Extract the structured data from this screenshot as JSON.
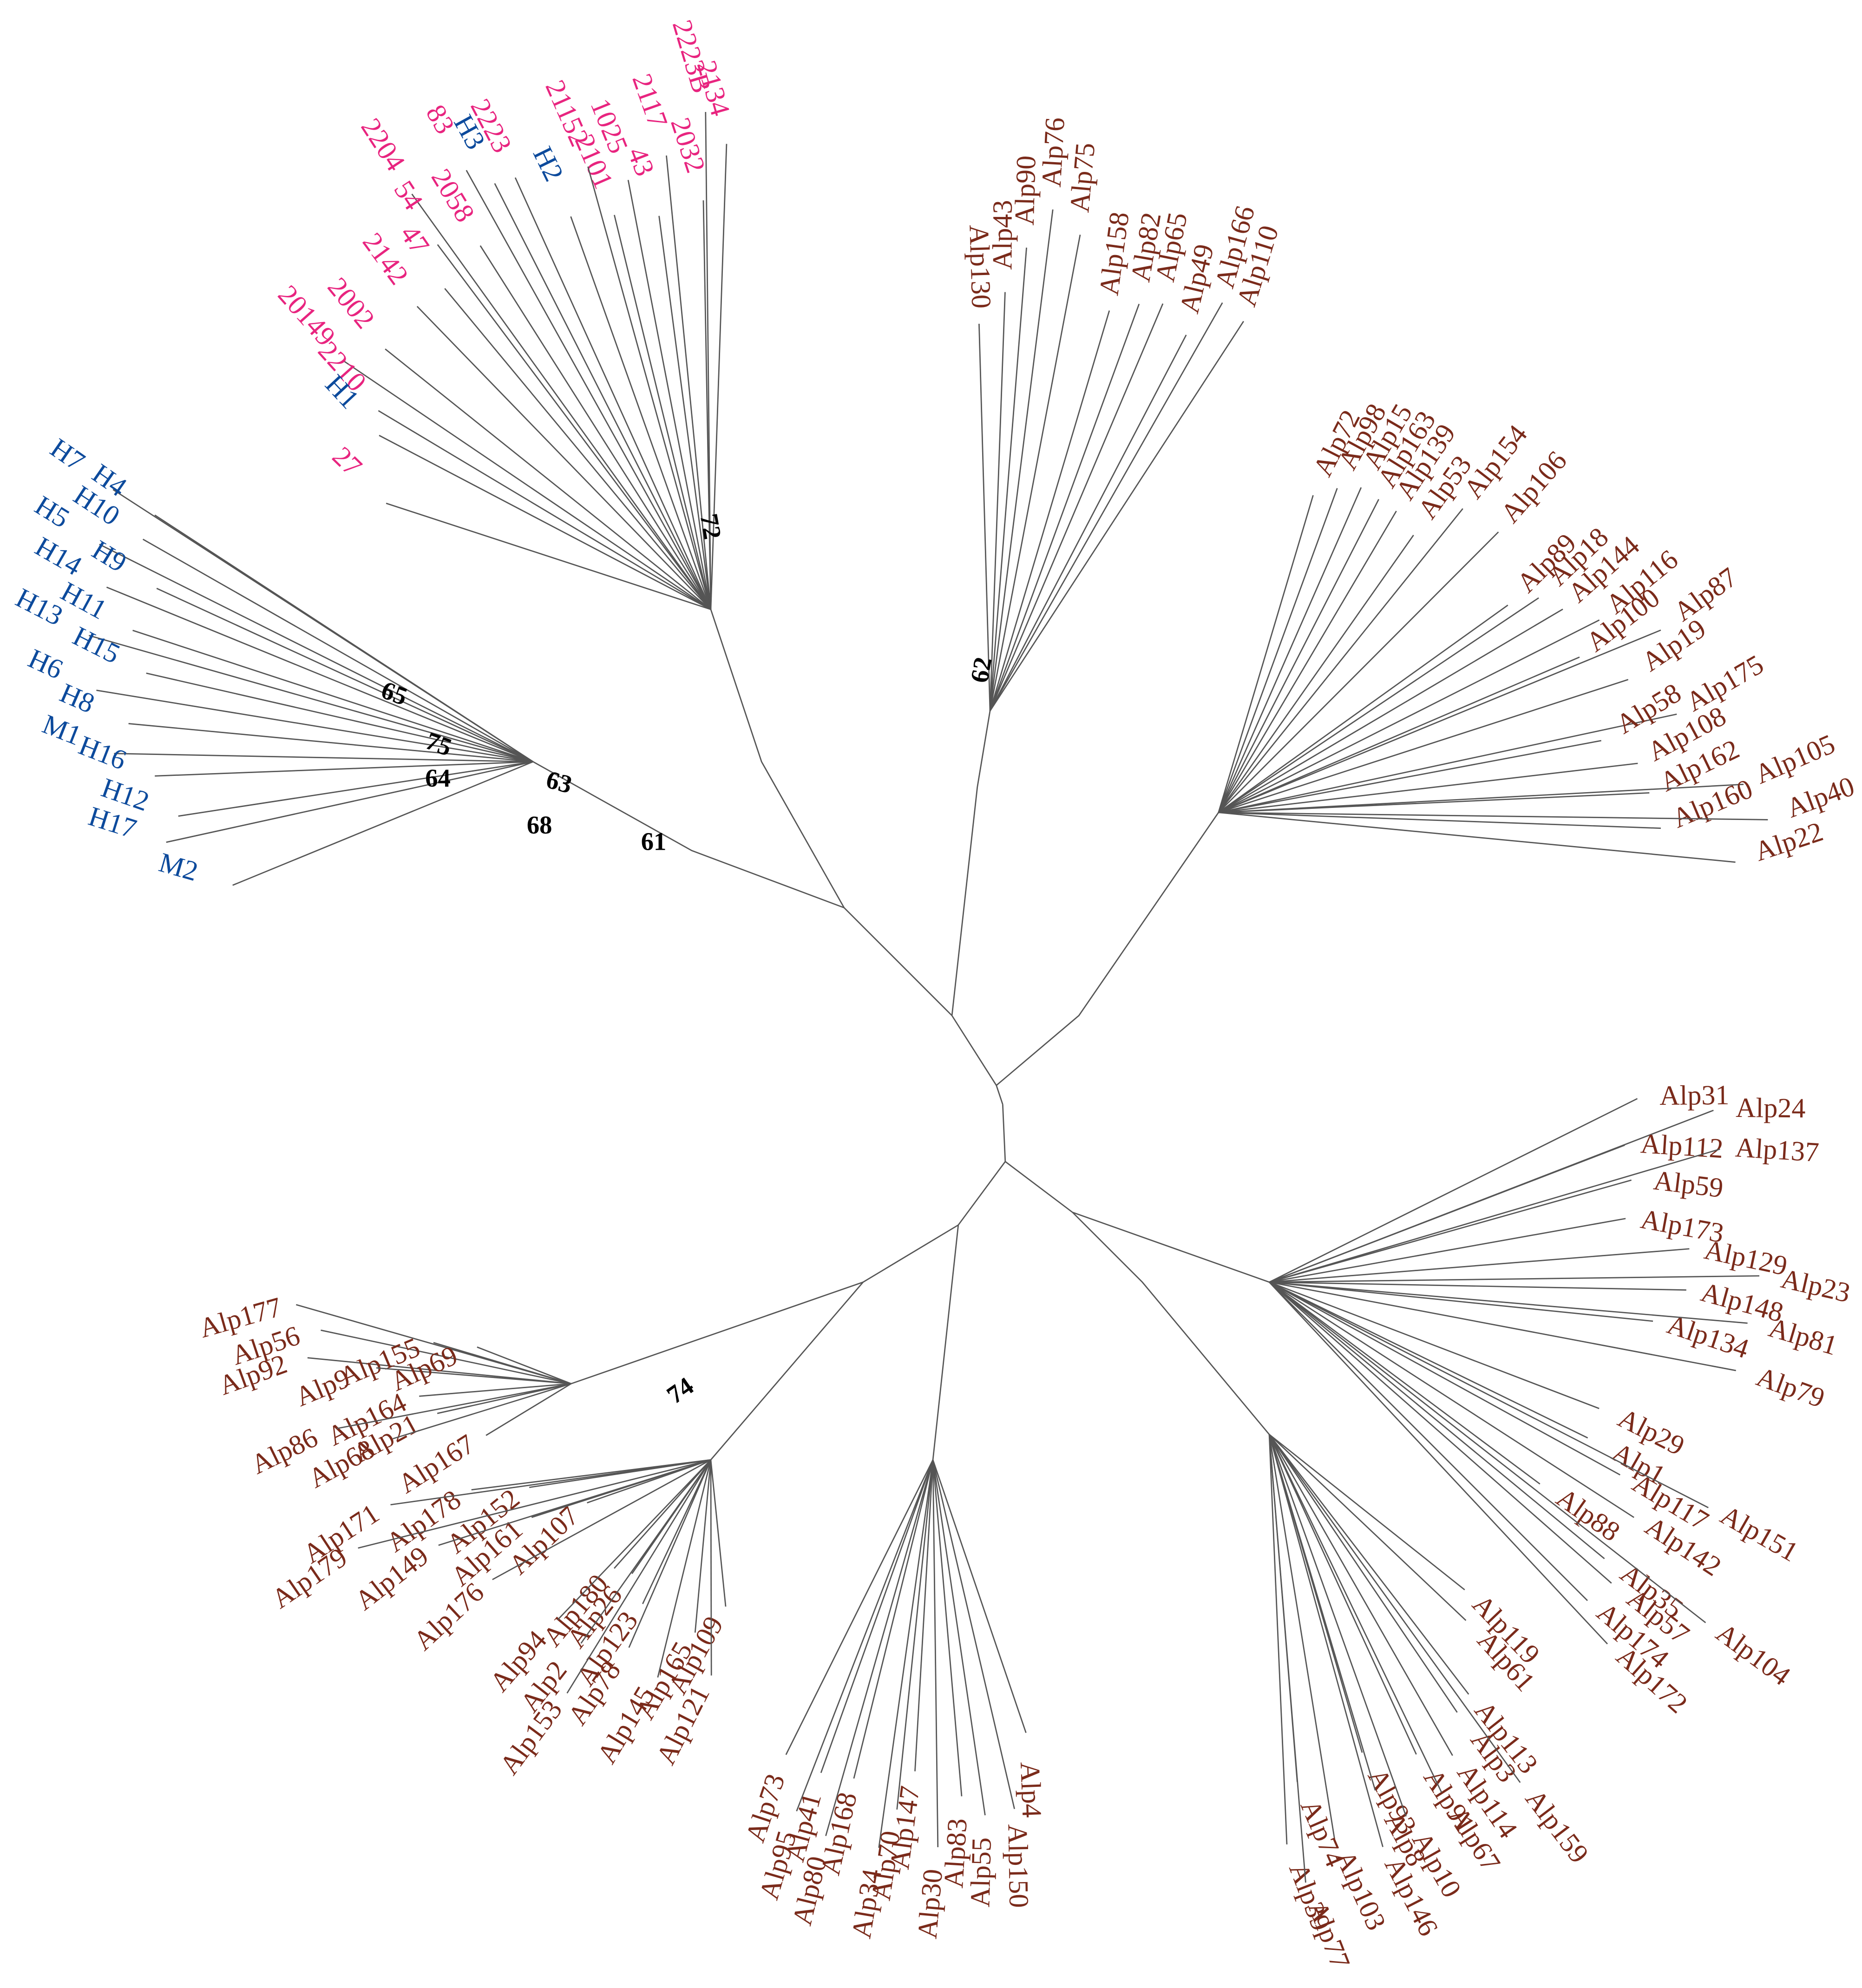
{
  "groups": [
    {
      "color": "#e8247f",
      "labels": [
        "2134",
        "2223B",
        "2032",
        "2117",
        "43",
        "1025",
        "2101",
        "21152",
        "2223",
        "83",
        "2058",
        "2204",
        "54",
        "47",
        "2142",
        "2002",
        "20149",
        "2210",
        "27"
      ]
    },
    {
      "color": "#0c4a9c",
      "labels": [
        "H2",
        "H3",
        "H1",
        "H7",
        "H4",
        "H10",
        "H5",
        "H9",
        "H14",
        "H11",
        "H13",
        "H15",
        "H6",
        "H8",
        "M1",
        "H16",
        "H12",
        "H17",
        "M2"
      ]
    },
    {
      "color": "#7a2a1a",
      "labels": [
        "Alp130",
        "Alp43",
        "Alp90",
        "Alp76",
        "Alp75",
        "Alp158",
        "Alp82",
        "Alp65",
        "Alp49",
        "Alp166",
        "Alp110",
        "Alp72",
        "Alp98",
        "Alp15",
        "Alp163",
        "Alp139",
        "Alp53",
        "Alp154",
        "Alp106",
        "Alp89",
        "Alp18",
        "Alp144",
        "Alp116",
        "Alp87",
        "Alp100",
        "Alp19",
        "Alp175",
        "Alp58",
        "Alp108",
        "Alp162",
        "Alp105",
        "Alp160",
        "Alp40",
        "Alp22",
        "Alp31",
        "Alp24",
        "Alp112",
        "Alp137",
        "Alp59",
        "Alp173",
        "Alp129",
        "Alp23",
        "Alp148",
        "Alp134",
        "Alp81",
        "Alp79",
        "Alp29",
        "Alp1",
        "Alp117",
        "Alp151",
        "Alp88",
        "Alp142",
        "Alp35",
        "Alp57",
        "Alp174",
        "Alp104",
        "Alp172",
        "Alp119",
        "Alp61",
        "Alp113",
        "Alp3",
        "Alp114",
        "Alp159",
        "Alp91",
        "Alp67",
        "Alp93",
        "Alp8",
        "Alp10",
        "Alp146",
        "Alp103",
        "Alp74",
        "Alp39",
        "Alp77",
        "Alp4",
        "Alp150",
        "Alp55",
        "Alp83",
        "Alp30",
        "Alp147",
        "Alp70",
        "Alp34",
        "Alp168",
        "Alp41",
        "Alp80",
        "Alp95",
        "Alp73",
        "Alp109",
        "Alp165",
        "Alp121",
        "Alp78",
        "Alp145",
        "Alp26",
        "Alp123",
        "Alp180",
        "Alp94",
        "Alp2",
        "Alp153",
        "Alp107",
        "Alp152",
        "Alp161",
        "Alp176",
        "Alp178",
        "Alp149",
        "Alp171",
        "Alp179",
        "Alp177",
        "Alp56",
        "Alp92",
        "Alp155",
        "Alp9",
        "Alp69",
        "Alp164",
        "Alp86",
        "Alp21",
        "Alp68",
        "Alp167"
      ]
    }
  ],
  "bootstrap": [
    72,
    62,
    65,
    75,
    63,
    64,
    68,
    61,
    74
  ]
}
